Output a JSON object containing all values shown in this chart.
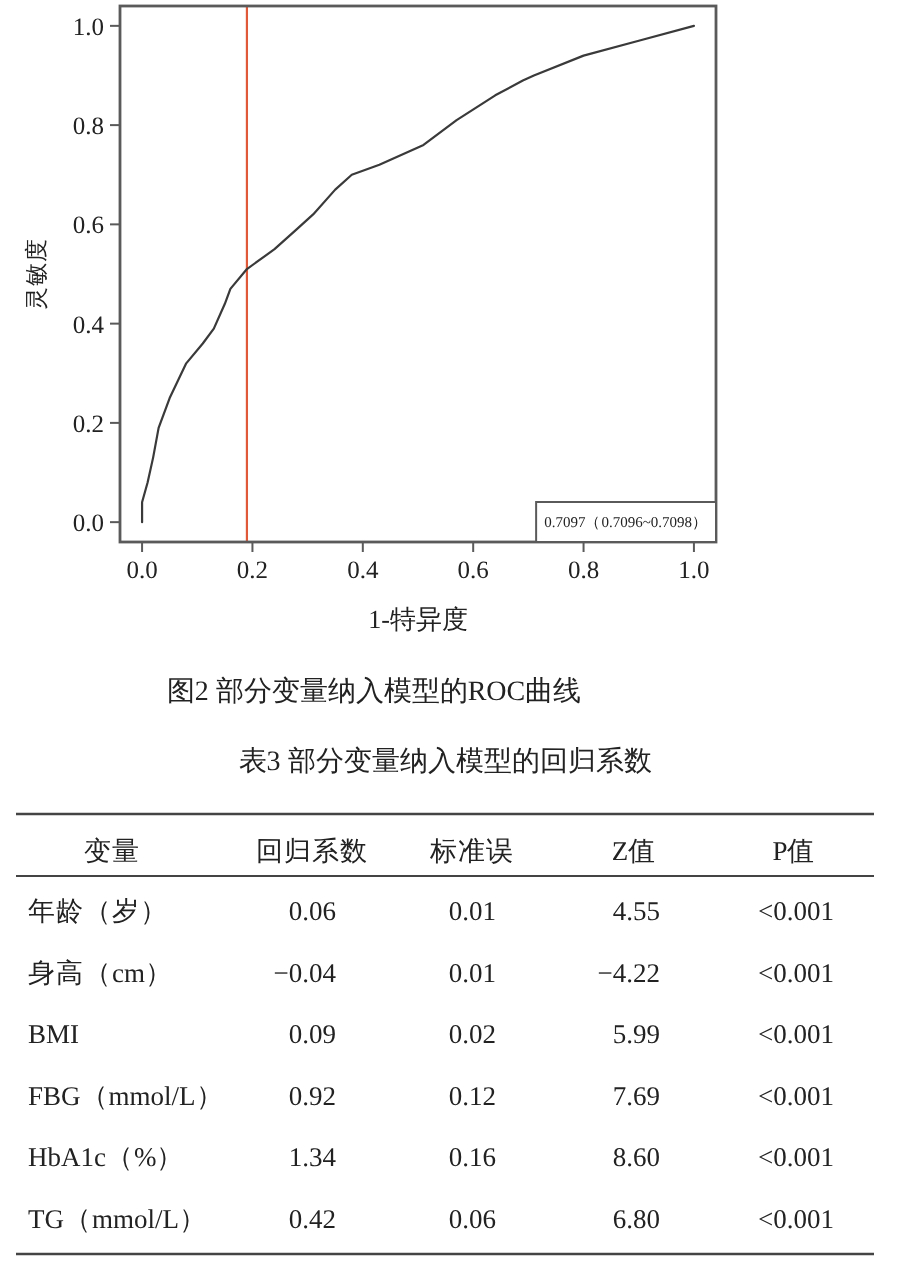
{
  "chart_data": [
    {
      "type": "line",
      "title": "图2 部分变量纳入模型的ROC曲线",
      "xlabel": "1-特异度",
      "ylabel": "灵敏度",
      "annotations": [
        "0.7097（0.7096~0.7098）"
      ],
      "x": [
        0,
        0,
        0.01,
        0.02,
        0.03,
        0.05,
        0.08,
        0.11,
        0.13,
        0.15,
        0.16,
        0.19,
        0.24,
        0.28,
        0.31,
        0.35,
        0.38,
        0.43,
        0.51,
        0.57,
        0.64,
        0.69,
        0.71,
        0.8,
        0.9,
        1
      ],
      "series": [
        {
          "color": "#3a3a3a",
          "values": [
            0,
            0.04,
            0.08,
            0.13,
            0.19,
            0.25,
            0.32,
            0.36,
            0.39,
            0.44,
            0.47,
            0.51,
            0.55,
            0.59,
            0.62,
            0.67,
            0.7,
            0.72,
            0.76,
            0.81,
            0.86,
            0.89,
            0.9,
            0.94,
            0.97,
            1
          ]
        }
      ],
      "xlim": [
        -0.04,
        1.04
      ],
      "ylim": [
        -0.04,
        1.04
      ],
      "xticks": [
        {
          "value": 0,
          "label": "0.0"
        },
        0.2,
        0.4,
        0.6,
        0.8,
        {
          "value": 1,
          "label": "1.0"
        }
      ],
      "yticks": [
        {
          "value": 0,
          "label": "0.0"
        },
        0.2,
        0.4,
        0.6,
        0.8,
        {
          "value": 1,
          "label": "1.0"
        }
      ],
      "ref_lines": [
        {
          "axis": "x",
          "value": 0.19,
          "color": "#e05a3a"
        }
      ]
    },
    {
      "type": "other",
      "title": "表3 部分变量纳入模型的回归系数",
      "categories": [
        "变量",
        "回归系数",
        "标准误",
        "Z值",
        "P值"
      ],
      "y_categories": [
        "年龄（岁）",
        "身高（cm）",
        "BMI",
        "FBG（mmol/L）",
        "HbA1c（%）",
        "TG（mmol/L）"
      ],
      "cell_labels": [
        [
          "0.06",
          "0.01",
          "4.55",
          "<0.001"
        ],
        [
          "−0.04",
          "0.01",
          "−4.22",
          "<0.001"
        ],
        [
          "0.09",
          "0.02",
          "5.99",
          "<0.001"
        ],
        [
          "0.92",
          "0.12",
          "7.69",
          "<0.001"
        ],
        [
          "1.34",
          "0.16",
          "8.60",
          "<0.001"
        ],
        [
          "0.42",
          "0.06",
          "6.80",
          "<0.001"
        ]
      ]
    }
  ]
}
